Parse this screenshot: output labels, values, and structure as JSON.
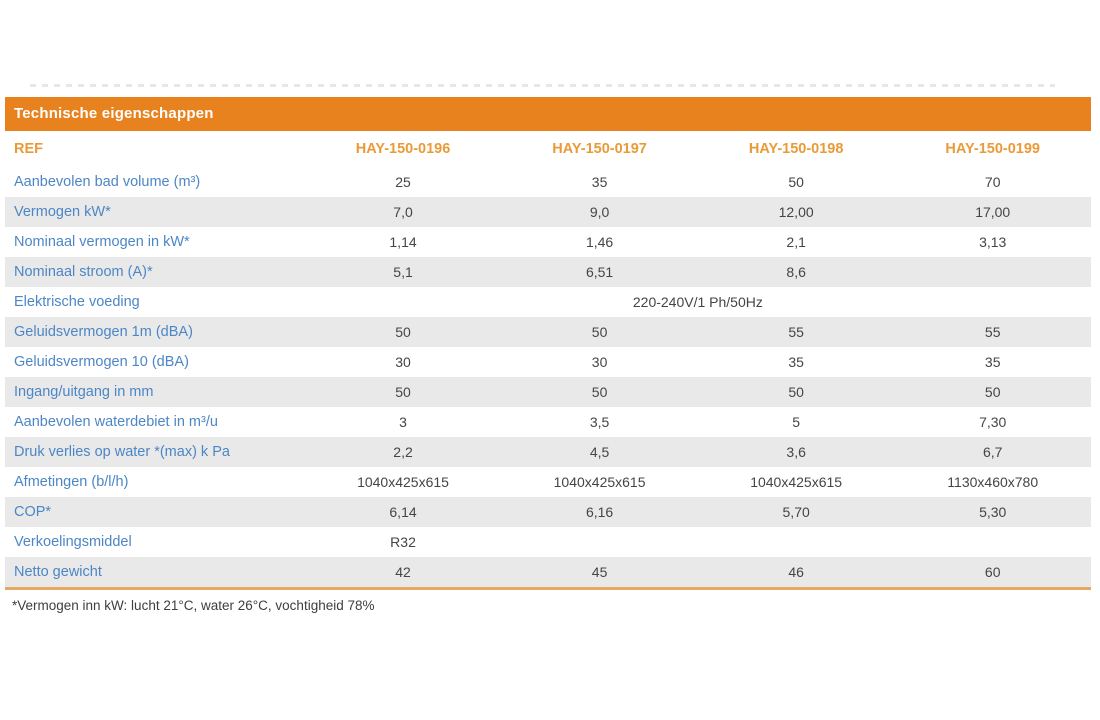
{
  "header": {
    "title": "Technische eigenschappen"
  },
  "table": {
    "ref_label": "REF",
    "columns": [
      "HAY-150-0196",
      "HAY-150-0197",
      "HAY-150-0198",
      "HAY-150-0199"
    ],
    "rows": [
      {
        "label": "Aanbevolen bad volume (m³)",
        "values": [
          "25",
          "35",
          "50",
          "70"
        ]
      },
      {
        "label": "Vermogen kW*",
        "values": [
          "7,0",
          "9,0",
          "12,00",
          "17,00"
        ]
      },
      {
        "label": "Nominaal vermogen in kW*",
        "values": [
          "1,14",
          "1,46",
          "2,1",
          "3,13"
        ]
      },
      {
        "label": "Nominaal stroom (A)*",
        "values": [
          "5,1",
          "6,51",
          "8,6",
          ""
        ]
      },
      {
        "label": "Elektrische voeding",
        "span_value": "220-240V/1 Ph/50Hz"
      },
      {
        "label": "Geluidsvermogen 1m (dBA)",
        "values": [
          "50",
          "50",
          "55",
          "55"
        ]
      },
      {
        "label": "Geluidsvermogen 10 (dBA)",
        "values": [
          "30",
          "30",
          "35",
          "35"
        ]
      },
      {
        "label": "Ingang/uitgang in mm",
        "values": [
          "50",
          "50",
          "50",
          "50"
        ]
      },
      {
        "label": "Aanbevolen waterdebiet in m³/u",
        "values": [
          "3",
          "3,5",
          "5",
          "7,30"
        ]
      },
      {
        "label": "Druk verlies op water *(max) k Pa",
        "values": [
          "2,2",
          "4,5",
          "3,6",
          "6,7"
        ]
      },
      {
        "label": "Afmetingen (b/l/h)",
        "values": [
          "1040x425x615",
          "1040x425x615",
          "1040x425x615",
          "1130x460x780"
        ]
      },
      {
        "label": "COP*",
        "values": [
          "6,14",
          "6,16",
          "5,70",
          "5,30"
        ]
      },
      {
        "label": "Verkoelingsmiddel",
        "values": [
          "R32",
          "",
          "",
          ""
        ]
      },
      {
        "label": "Netto gewicht",
        "values": [
          "42",
          "45",
          "46",
          "60"
        ]
      }
    ]
  },
  "footnote": "*Vermogen inn kW: lucht 21°C, water 26°C, vochtigheid 78%",
  "colors": {
    "header_bar": "#E8821E",
    "column_header_text": "#E99B38",
    "row_label_text": "#4C86C6",
    "stripe_row_bg": "#E9E9E9",
    "value_text": "#454545",
    "bottom_border": "#E7A863"
  }
}
